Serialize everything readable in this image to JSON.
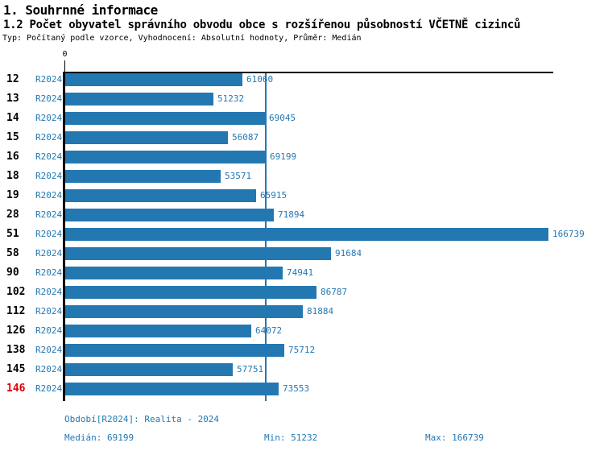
{
  "colors": {
    "bar_blue": "#2478b2",
    "text_blue": "#2478b2",
    "highlight_red": "#e00000",
    "axis_black": "#000000",
    "background": "#ffffff"
  },
  "header": {
    "title": "1. Souhrnné informace",
    "subtitle": "1.2 Počet obyvatel správního obvodu obce s rozšířenou působností VČETNĚ cizinců",
    "meta": "Typ: Počítaný podle vzorce, Vyhodnocení: Absolutní hodnoty, Průměr: Medián"
  },
  "chart_data": {
    "type": "bar",
    "orientation": "horizontal",
    "series_name": "R2024",
    "categories": [
      "12",
      "13",
      "14",
      "15",
      "16",
      "18",
      "19",
      "28",
      "51",
      "58",
      "90",
      "102",
      "112",
      "126",
      "138",
      "145",
      "146"
    ],
    "values": [
      61060,
      51232,
      69045,
      56087,
      69199,
      53571,
      65915,
      71894,
      166739,
      91684,
      74941,
      86787,
      81884,
      64072,
      75712,
      57751,
      73553
    ],
    "highlighted_category": "146",
    "median_reference_line": 69199,
    "x_axis": {
      "min": 0,
      "tick_labels": [
        "0"
      ]
    },
    "value_labels_shown": true,
    "grid": false,
    "legend": "none",
    "bar_color": "#2478b2"
  },
  "footer": {
    "period": "Období[R2024]: Realita - 2024",
    "median": "Medián: 69199",
    "min": "Min: 51232",
    "max": "Max: 166739"
  }
}
